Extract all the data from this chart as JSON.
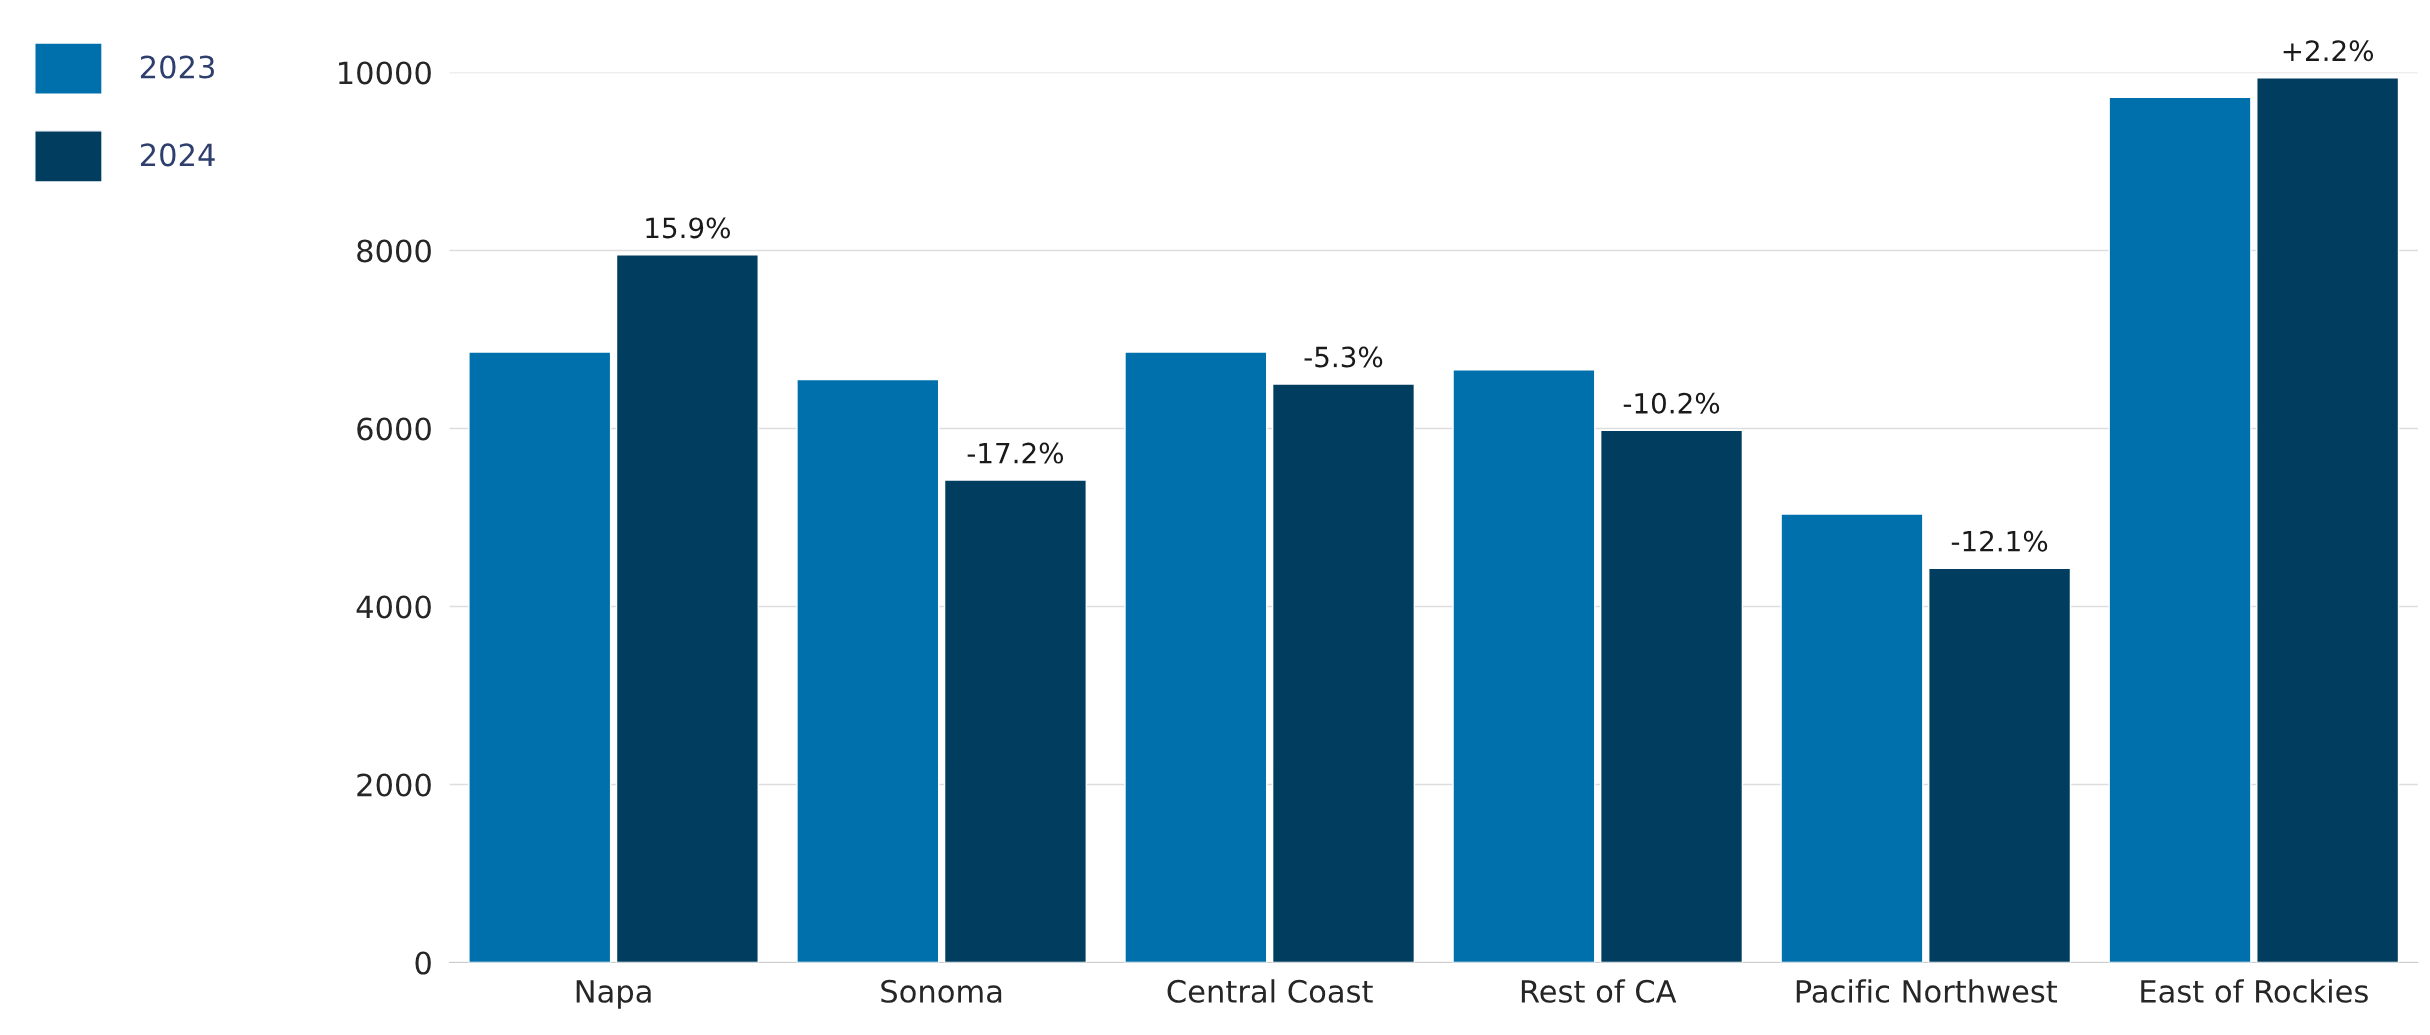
{
  "chart_data": {
    "type": "bar",
    "categories": [
      "Napa",
      "Sonoma",
      "Central Coast",
      "Rest of CA",
      "Pacific Northwest",
      "East of Rockies"
    ],
    "series": [
      {
        "name": "2023",
        "color": "#0070ad",
        "values": [
          6860,
          6550,
          6860,
          6660,
          5040,
          9720
        ]
      },
      {
        "name": "2024",
        "color": "#003d5e",
        "values": [
          7950,
          5420,
          6500,
          5980,
          4430,
          9940
        ]
      }
    ],
    "annotations": [
      {
        "text": "15.9%",
        "x": "Napa",
        "y": 7950
      },
      {
        "text": "-17.2%",
        "x": "Sonoma",
        "y": 5420
      },
      {
        "text": "-5.3%",
        "x": "Central Coast",
        "y": 6500
      },
      {
        "text": "-10.2%",
        "x": "Rest of CA",
        "y": 5980
      },
      {
        "text": "-12.1%",
        "x": "Pacific Northwest",
        "y": 4430
      },
      {
        "text": "+2.2%",
        "x": "East of Rockies",
        "y": 9940
      }
    ],
    "ylim": [
      0,
      10000
    ],
    "yticks": [
      0,
      2000,
      4000,
      6000,
      8000,
      10000
    ],
    "grid": "y",
    "legend": "top left"
  }
}
